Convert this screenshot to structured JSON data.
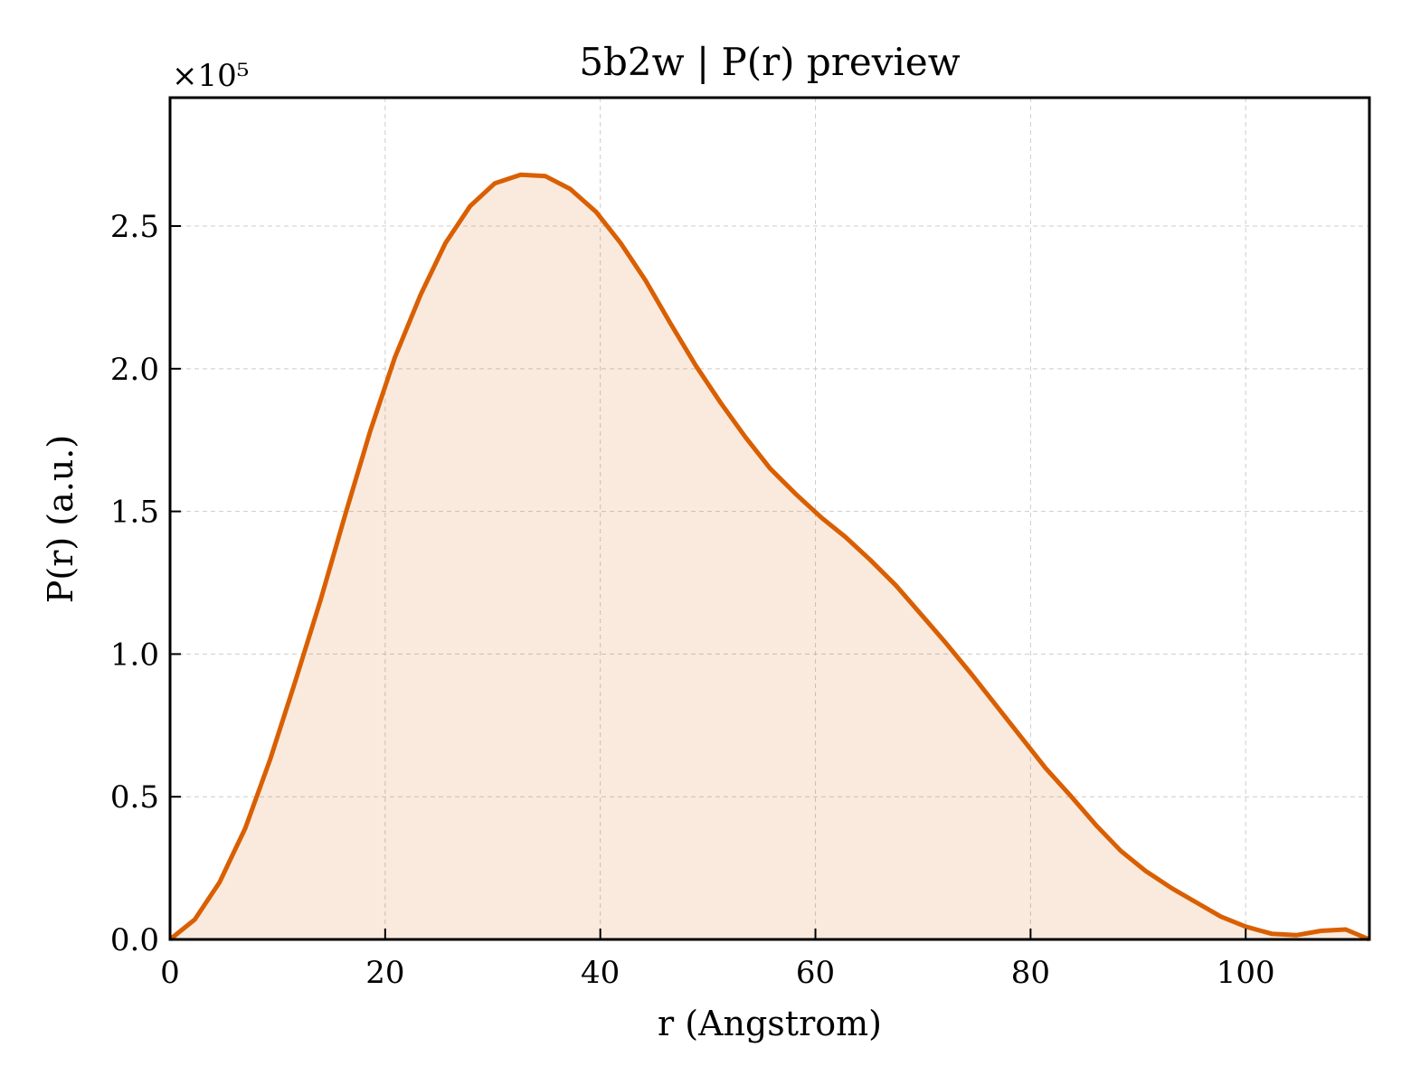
{
  "chart_data": {
    "type": "area",
    "title": "5b2w | P(r) preview",
    "xlabel": "r (Angstrom)",
    "ylabel": "P(r) (a.u.)",
    "y_offset_label": "×10⁵",
    "y_scale": 100000,
    "xlim": [
      0,
      111.5
    ],
    "ylim": [
      0,
      2.95
    ],
    "x_ticks": [
      0,
      20,
      40,
      60,
      80,
      100
    ],
    "y_ticks": [
      0.0,
      0.5,
      1.0,
      1.5,
      2.0,
      2.5
    ],
    "x_tick_labels": [
      "0",
      "20",
      "40",
      "60",
      "80",
      "100"
    ],
    "y_tick_labels": [
      "0.0",
      "0.5",
      "1.0",
      "1.5",
      "2.0",
      "2.5"
    ],
    "grid": true,
    "colors": {
      "line": "#d95f02",
      "fill": "#d95f02",
      "grid": "#cccccc"
    },
    "series": [
      {
        "x": [
          0,
          2.3,
          4.6,
          7.0,
          9.3,
          11.6,
          14.0,
          16.3,
          18.6,
          20.9,
          23.3,
          25.6,
          27.9,
          30.2,
          32.6,
          34.9,
          37.2,
          39.6,
          41.9,
          44.2,
          46.5,
          48.9,
          51.2,
          53.5,
          55.8,
          58.2,
          60.5,
          62.8,
          65.1,
          67.5,
          69.8,
          72.1,
          74.5,
          76.8,
          79.1,
          81.4,
          83.8,
          86.1,
          88.4,
          90.7,
          93.1,
          95.4,
          97.7,
          100.0,
          102.4,
          104.7,
          107.0,
          109.3,
          111.5
        ],
        "y": [
          0.0,
          0.07,
          0.2,
          0.39,
          0.63,
          0.9,
          1.19,
          1.49,
          1.78,
          2.04,
          2.26,
          2.44,
          2.57,
          2.65,
          2.68,
          2.675,
          2.63,
          2.55,
          2.44,
          2.31,
          2.16,
          2.01,
          1.88,
          1.76,
          1.65,
          1.56,
          1.48,
          1.41,
          1.33,
          1.24,
          1.14,
          1.04,
          0.93,
          0.82,
          0.71,
          0.6,
          0.5,
          0.4,
          0.31,
          0.24,
          0.18,
          0.13,
          0.08,
          0.045,
          0.02,
          0.015,
          0.03,
          0.035,
          0.0
        ]
      }
    ]
  }
}
